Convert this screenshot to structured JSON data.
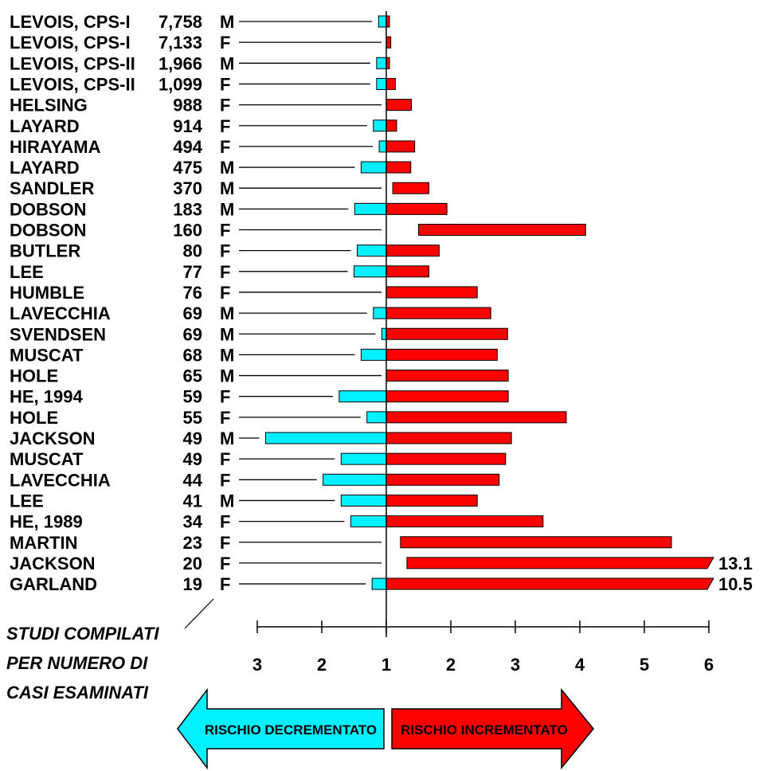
{
  "chart_data": {
    "type": "forest",
    "center_value": 1,
    "axis": {
      "decrease_ticks": [
        3,
        2,
        1
      ],
      "increase_ticks": [
        2,
        3,
        4,
        5,
        6
      ]
    },
    "colors": {
      "decrease": "#00f0ff",
      "increase": "#ff0000"
    },
    "studies": [
      {
        "author": "LEVOIS, CPS-I",
        "cases": "7,758",
        "sex": "M",
        "low": 0.88,
        "high": 1.05
      },
      {
        "author": "LEVOIS, CPS-I",
        "cases": "7,133",
        "sex": "F",
        "low": 1.0,
        "high": 1.07
      },
      {
        "author": "LEVOIS, CPS-II",
        "cases": "1,966",
        "sex": "M",
        "low": 0.85,
        "high": 1.05
      },
      {
        "author": "LEVOIS, CPS-II",
        "cases": "1,099",
        "sex": "F",
        "low": 0.85,
        "high": 1.14
      },
      {
        "author": "HELSING",
        "cases": "988",
        "sex": "F",
        "low": 1.0,
        "high": 1.39
      },
      {
        "author": "LAYARD",
        "cases": "914",
        "sex": "F",
        "low": 0.8,
        "high": 1.16
      },
      {
        "author": "HIRAYAMA",
        "cases": "494",
        "sex": "F",
        "low": 0.89,
        "high": 1.44
      },
      {
        "author": "LAYARD",
        "cases": "475",
        "sex": "M",
        "low": 0.61,
        "high": 1.38
      },
      {
        "author": "SANDLER",
        "cases": "370",
        "sex": "M",
        "low": 1.1,
        "high": 1.66
      },
      {
        "author": "DOBSON",
        "cases": "183",
        "sex": "M",
        "low": 0.51,
        "high": 1.94
      },
      {
        "author": "DOBSON",
        "cases": "160",
        "sex": "F",
        "low": 1.5,
        "high": 4.09
      },
      {
        "author": "BUTLER",
        "cases": "80",
        "sex": "F",
        "low": 0.55,
        "high": 1.82
      },
      {
        "author": "LEE",
        "cases": "77",
        "sex": "F",
        "low": 0.5,
        "high": 1.66
      },
      {
        "author": "HUMBLE",
        "cases": "76",
        "sex": "F",
        "low": 1.0,
        "high": 2.41
      },
      {
        "author": "LAVECCHIA",
        "cases": "69",
        "sex": "M",
        "low": 0.8,
        "high": 2.62
      },
      {
        "author": "SVENDSEN",
        "cases": "69",
        "sex": "M",
        "low": 0.93,
        "high": 2.88
      },
      {
        "author": "MUSCAT",
        "cases": "68",
        "sex": "M",
        "low": 0.61,
        "high": 2.72
      },
      {
        "author": "HOLE",
        "cases": "65",
        "sex": "M",
        "low": 1.0,
        "high": 2.89
      },
      {
        "author": "HE, 1994",
        "cases": "59",
        "sex": "F",
        "low": 0.27,
        "high": 2.89
      },
      {
        "author": "HOLE",
        "cases": "55",
        "sex": "F",
        "low": 0.7,
        "high": 3.79
      },
      {
        "author": "JACKSON",
        "cases": "49",
        "sex": "M",
        "low": -0.87,
        "high": 2.94
      },
      {
        "author": "MUSCAT",
        "cases": "49",
        "sex": "F",
        "low": 0.3,
        "high": 2.85
      },
      {
        "author": "LAVECCHIA",
        "cases": "44",
        "sex": "F",
        "low": 0.02,
        "high": 2.75
      },
      {
        "author": "LEE",
        "cases": "41",
        "sex": "M",
        "low": 0.3,
        "high": 2.41
      },
      {
        "author": "HE, 1989",
        "cases": "34",
        "sex": "F",
        "low": 0.45,
        "high": 3.43
      },
      {
        "author": "MARTIN",
        "cases": "23",
        "sex": "F",
        "low": 1.22,
        "high": 5.42
      },
      {
        "author": "JACKSON",
        "cases": "20",
        "sex": "F",
        "low": 1.32,
        "high": 13.1,
        "high_label": "13.1"
      },
      {
        "author": "GARLAND",
        "cases": "19",
        "sex": "F",
        "low": 0.78,
        "high": 10.5,
        "high_label": "10.5"
      }
    ]
  },
  "caption_lines": [
    "STUDI COMPILATI",
    "PER NUMERO DI",
    "CASI ESAMINATI"
  ],
  "arrows": {
    "decrease_label": "RISCHIO DECREMENTATO",
    "increase_label": "RISCHIO INCREMENTATO"
  }
}
